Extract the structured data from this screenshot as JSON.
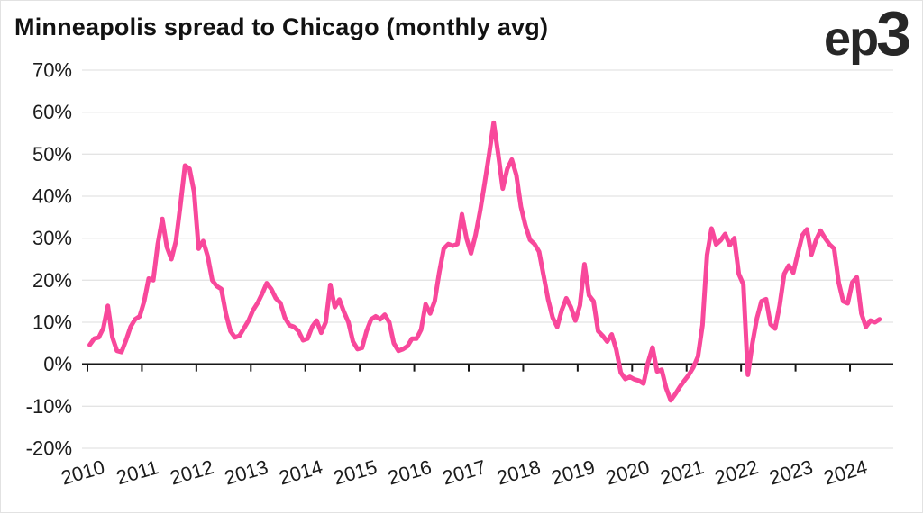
{
  "header": {
    "title": "Minneapolis spread to Chicago (monthly avg)",
    "logo_prefix": "ep",
    "logo_digit": "3"
  },
  "colors": {
    "line": "#f8489b",
    "grid": "#e4e4e4",
    "zero_axis": "#161616",
    "text": "#1c1c1c",
    "background": "#ffffff"
  },
  "chart_data": {
    "type": "line",
    "title": "Minneapolis spread to Chicago (monthly avg)",
    "series_name": "Minneapolis spread to Chicago (monthly avg)",
    "unit": "%",
    "frequency": "monthly",
    "start": "2010-01",
    "end": "2024-07",
    "grid": "horizontal",
    "zero_line": true,
    "legend": "none",
    "ylim": [
      -20,
      70
    ],
    "y_ticks": [
      70,
      60,
      50,
      40,
      30,
      20,
      10,
      0,
      -10,
      -20
    ],
    "y_tick_labels": [
      "70%",
      "60%",
      "50%",
      "40%",
      "30%",
      "20%",
      "10%",
      "0%",
      "-10%",
      "-20%"
    ],
    "x_tick_labels": [
      "2010",
      "2011",
      "2012",
      "2013",
      "2014",
      "2015",
      "2016",
      "2017",
      "2018",
      "2019",
      "2020",
      "2021",
      "2022",
      "2023",
      "2024"
    ],
    "values": [
      4.6,
      6.1,
      6.4,
      8.6,
      13.9,
      6.4,
      3.2,
      2.9,
      5.7,
      8.9,
      10.7,
      11.4,
      15.0,
      20.4,
      20.0,
      28.6,
      34.6,
      27.9,
      25.0,
      29.3,
      38.0,
      47.3,
      46.5,
      41.0,
      27.5,
      29.3,
      25.7,
      20.0,
      18.6,
      17.9,
      12.1,
      7.9,
      6.4,
      6.8,
      8.6,
      10.4,
      12.9,
      14.6,
      16.8,
      19.3,
      17.9,
      15.7,
      14.6,
      11.1,
      9.3,
      8.9,
      7.9,
      5.7,
      6.1,
      8.9,
      10.4,
      7.5,
      10.0,
      18.9,
      13.6,
      15.4,
      12.5,
      10.0,
      5.4,
      3.6,
      3.9,
      7.9,
      10.7,
      11.4,
      10.7,
      11.8,
      10.0,
      5.0,
      3.2,
      3.6,
      4.3,
      6.1,
      6.1,
      8.2,
      14.3,
      12.1,
      15.0,
      21.8,
      27.5,
      28.6,
      28.2,
      28.6,
      35.7,
      30.0,
      26.4,
      30.7,
      36.4,
      43.0,
      50.0,
      57.5,
      50.0,
      41.8,
      46.5,
      48.7,
      45.0,
      37.5,
      33.0,
      29.6,
      28.6,
      26.8,
      21.1,
      15.4,
      11.1,
      8.9,
      12.9,
      15.7,
      13.6,
      10.4,
      14.0,
      23.8,
      16.4,
      15.0,
      7.9,
      6.8,
      5.4,
      7.1,
      3.5,
      -2.0,
      -3.5,
      -3.0,
      -3.6,
      -3.9,
      -4.6,
      0.4,
      4.0,
      -1.7,
      -1.3,
      -5.7,
      -8.6,
      -7.1,
      -5.4,
      -3.9,
      -2.5,
      -0.7,
      1.8,
      9.3,
      26.0,
      32.3,
      28.5,
      29.5,
      31.0,
      28.3,
      30.0,
      21.5,
      19.0,
      -2.5,
      5.0,
      11.0,
      15.0,
      15.5,
      9.5,
      8.5,
      14.0,
      21.5,
      23.5,
      21.8,
      26.4,
      30.7,
      32.1,
      26.1,
      29.5,
      31.8,
      30.0,
      28.5,
      27.5,
      19.5,
      15.0,
      14.5,
      19.5,
      20.7,
      12.1,
      8.9,
      10.4,
      10.0,
      10.7
    ]
  }
}
